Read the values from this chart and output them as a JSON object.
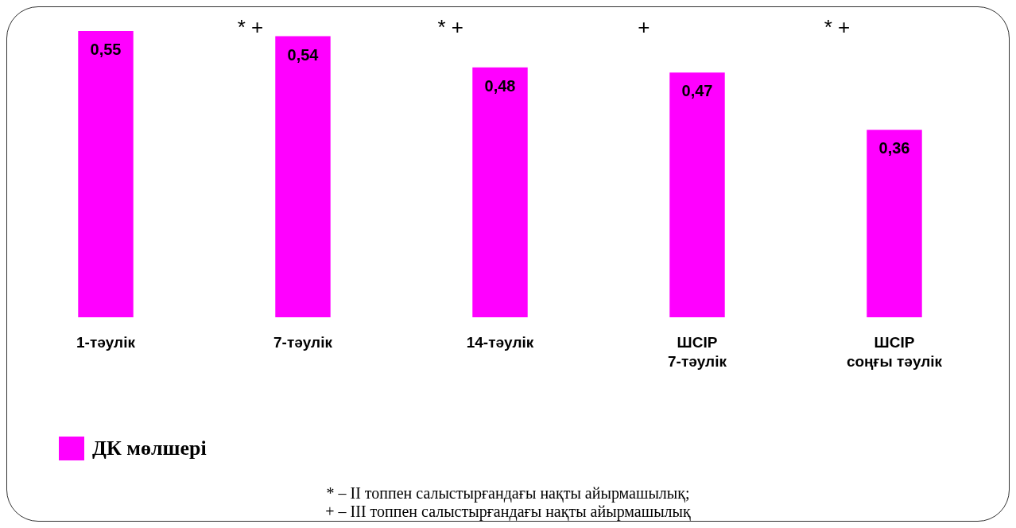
{
  "chart_data": {
    "type": "bar",
    "categories": [
      "1-тәулік",
      "7-тәулік",
      "14-тәулік",
      "ШСІР 7-тәулік",
      "ШСІР соңғы тәулік"
    ],
    "series": [
      {
        "name": "ДК мөлшері",
        "color": "#ff00ff",
        "values": [
          0.55,
          0.54,
          0.48,
          0.47,
          0.36
        ],
        "value_labels": [
          "0,55",
          "0,54",
          "0,48",
          "0,47",
          "0,36"
        ]
      }
    ],
    "legend": "bottom left",
    "annotations": [
      "* +",
      "* +",
      "+",
      "* +",
      "* – II топпен салыстырғандағы нақты айырмашылық;",
      "+ – III топпен салыстырғандағы нақты айырмашылық"
    ]
  }
}
